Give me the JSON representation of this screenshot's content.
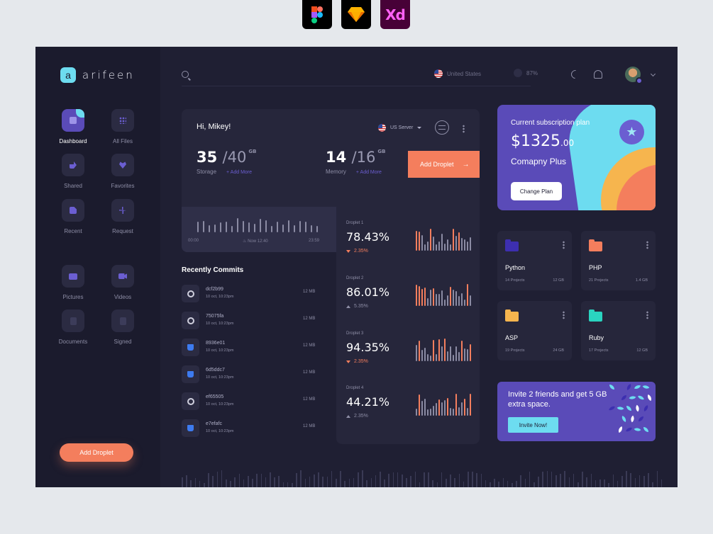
{
  "tools": {
    "xd_label": "Xd"
  },
  "brand": {
    "logo_letter": "a",
    "name": "arifeen"
  },
  "nav": [
    {
      "label": "Dashboard",
      "active": true
    },
    {
      "label": "All Files"
    },
    {
      "label": "Shared"
    },
    {
      "label": "Favorites"
    },
    {
      "label": "Recent"
    },
    {
      "label": "Request"
    },
    {
      "label": "Pictures"
    },
    {
      "label": "Videos"
    },
    {
      "label": "Documents"
    },
    {
      "label": "Signed"
    }
  ],
  "sidebar_button": "Add Droplet",
  "header": {
    "region": "United States",
    "percent": "87%"
  },
  "server": {
    "greeting": "Hi, Mikey!",
    "server_label": "US Server",
    "storage": {
      "used": "35",
      "total": "/40",
      "unit": "GB",
      "label": "Storage",
      "add_more": "+ Add More"
    },
    "memory": {
      "used": "14",
      "total": "/16",
      "unit": "GB",
      "label": "Memory",
      "add_more": "+ Add More"
    },
    "add_droplet": "Add Droplet",
    "timeline": {
      "start": "00:00",
      "now": "Now 12:40",
      "end": "23:59"
    }
  },
  "droplets": [
    {
      "name": "Droplet 1",
      "value": "78.43%",
      "change": "2.35%",
      "trend": "down"
    },
    {
      "name": "Droplet 2",
      "value": "86.01%",
      "change": "5.35%",
      "trend": "up"
    },
    {
      "name": "Droplet 3",
      "value": "94.35%",
      "change": "2.35%",
      "trend": "down"
    },
    {
      "name": "Droplet 4",
      "value": "44.21%",
      "change": "2.35%",
      "trend": "up"
    }
  ],
  "commits": {
    "title": "Recently Commits",
    "items": [
      {
        "hash": "dcf2b99",
        "date": "10 oct, 10:23pm",
        "size": "12 MB",
        "source": "github"
      },
      {
        "hash": "75075fa",
        "date": "10 oct, 10:23pm",
        "size": "12 MB",
        "source": "github"
      },
      {
        "hash": "8936e01",
        "date": "10 oct, 10:23pm",
        "size": "12 MB",
        "source": "bitbucket"
      },
      {
        "hash": "6d5ddc7",
        "date": "10 oct, 10:23pm",
        "size": "12 MB",
        "source": "bitbucket"
      },
      {
        "hash": "ef65505",
        "date": "10 oct, 10:23pm",
        "size": "12 MB",
        "source": "github"
      },
      {
        "hash": "e7efafc",
        "date": "10 oct, 10:23pm",
        "size": "12 MB",
        "source": "bitbucket"
      }
    ]
  },
  "subscription": {
    "title": "Current subscription plan",
    "price": "$1325",
    "cents": ".00",
    "plan": "Comapny Plus",
    "button": "Change Plan"
  },
  "folders": [
    {
      "name": "Python",
      "projects": "14 Projects",
      "size": "12 GB",
      "color": "#3d2fb0"
    },
    {
      "name": "PHP",
      "projects": "21 Projects",
      "size": "1.4 GB",
      "color": "#f47e5d"
    },
    {
      "name": "ASP",
      "projects": "19 Projects",
      "size": "24 GB",
      "color": "#f6b54e"
    },
    {
      "name": "Ruby",
      "projects": "17 Projects",
      "size": "12 GB",
      "color": "#2ad4c0"
    }
  ],
  "invite": {
    "text": "Invite 2 friends and get 5 GB extra space.",
    "button": "Invite Now!"
  },
  "colors": {
    "accent": "#f47e5d",
    "purple": "#5a4bb8",
    "cyan": "#6ddcf0"
  }
}
